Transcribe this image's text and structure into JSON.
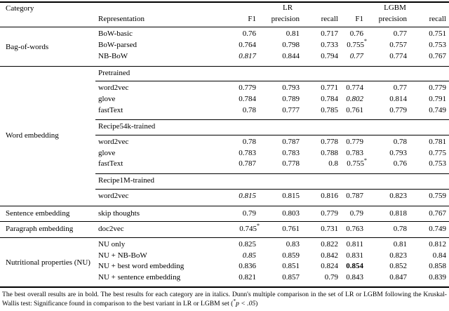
{
  "table": {
    "star_symbol": "*",
    "title_row": {
      "category": "Category",
      "representation": "Representation",
      "lr": "LR",
      "lgbm": "LGBM"
    },
    "metrics": {
      "f1": "F1",
      "precision": "precision",
      "recall": "recall"
    },
    "sections": [
      {
        "category": "Bag-of-words",
        "blocks": [
          {
            "subheader": "",
            "rows": [
              {
                "label": "BoW-basic",
                "values": [
                  {
                    "v": "0.76"
                  },
                  {
                    "v": "0.81"
                  },
                  {
                    "v": "0.717"
                  },
                  {
                    "v": "0.76"
                  },
                  {
                    "v": "0.77"
                  },
                  {
                    "v": "0.751"
                  }
                ]
              },
              {
                "label": "BoW-parsed",
                "values": [
                  {
                    "v": "0.764"
                  },
                  {
                    "v": "0.798"
                  },
                  {
                    "v": "0.733"
                  },
                  {
                    "v": "0.755",
                    "star": true
                  },
                  {
                    "v": "0.757"
                  },
                  {
                    "v": "0.753"
                  }
                ]
              },
              {
                "label": "NB-BoW",
                "values": [
                  {
                    "v": "0.817",
                    "italic": true
                  },
                  {
                    "v": "0.844"
                  },
                  {
                    "v": "0.794"
                  },
                  {
                    "v": "0.77",
                    "italic": true
                  },
                  {
                    "v": "0.774"
                  },
                  {
                    "v": "0.767"
                  }
                ]
              }
            ]
          }
        ]
      },
      {
        "category": "Word embedding",
        "blocks": [
          {
            "subheader": "Pretrained",
            "rows": [
              {
                "label": "word2vec",
                "values": [
                  {
                    "v": "0.779"
                  },
                  {
                    "v": "0.793"
                  },
                  {
                    "v": "0.771"
                  },
                  {
                    "v": "0.774"
                  },
                  {
                    "v": "0.77"
                  },
                  {
                    "v": "0.779"
                  }
                ]
              },
              {
                "label": "glove",
                "values": [
                  {
                    "v": "0.784"
                  },
                  {
                    "v": "0.789"
                  },
                  {
                    "v": "0.784"
                  },
                  {
                    "v": "0.802",
                    "italic": true
                  },
                  {
                    "v": "0.814"
                  },
                  {
                    "v": "0.791"
                  }
                ]
              },
              {
                "label": "fastText",
                "values": [
                  {
                    "v": "0.78"
                  },
                  {
                    "v": "0.777"
                  },
                  {
                    "v": "0.785"
                  },
                  {
                    "v": "0.761"
                  },
                  {
                    "v": "0.779"
                  },
                  {
                    "v": "0.749"
                  }
                ]
              }
            ]
          },
          {
            "subheader": "Recipe54k-trained",
            "rows": [
              {
                "label": "word2vec",
                "values": [
                  {
                    "v": "0.78"
                  },
                  {
                    "v": "0.787"
                  },
                  {
                    "v": "0.778"
                  },
                  {
                    "v": "0.779"
                  },
                  {
                    "v": "0.78"
                  },
                  {
                    "v": "0.781"
                  }
                ]
              },
              {
                "label": "glove",
                "values": [
                  {
                    "v": "0.783"
                  },
                  {
                    "v": "0.783"
                  },
                  {
                    "v": "0.788"
                  },
                  {
                    "v": "0.783"
                  },
                  {
                    "v": "0.793"
                  },
                  {
                    "v": "0.775"
                  }
                ]
              },
              {
                "label": "fastText",
                "values": [
                  {
                    "v": "0.787"
                  },
                  {
                    "v": "0.778"
                  },
                  {
                    "v": "0.8"
                  },
                  {
                    "v": "0.755",
                    "star": true
                  },
                  {
                    "v": "0.76"
                  },
                  {
                    "v": "0.753"
                  }
                ]
              }
            ]
          },
          {
            "subheader": "Recipe1M-trained",
            "rows": [
              {
                "label": "word2vec",
                "values": [
                  {
                    "v": "0.815",
                    "italic": true
                  },
                  {
                    "v": "0.815"
                  },
                  {
                    "v": "0.816"
                  },
                  {
                    "v": "0.787"
                  },
                  {
                    "v": "0.823"
                  },
                  {
                    "v": "0.759"
                  }
                ]
              }
            ]
          }
        ]
      },
      {
        "category": "Sentence embedding",
        "blocks": [
          {
            "subheader": "",
            "rows": [
              {
                "label": "skip thoughts",
                "values": [
                  {
                    "v": "0.79"
                  },
                  {
                    "v": "0.803"
                  },
                  {
                    "v": "0.779"
                  },
                  {
                    "v": "0.79"
                  },
                  {
                    "v": "0.818"
                  },
                  {
                    "v": "0.767"
                  }
                ]
              }
            ]
          }
        ]
      },
      {
        "category": "Paragraph embedding",
        "blocks": [
          {
            "subheader": "",
            "rows": [
              {
                "label": "doc2vec",
                "values": [
                  {
                    "v": "0.745",
                    "star": true
                  },
                  {
                    "v": "0.761"
                  },
                  {
                    "v": "0.731"
                  },
                  {
                    "v": "0.763"
                  },
                  {
                    "v": "0.78"
                  },
                  {
                    "v": "0.749"
                  }
                ]
              }
            ]
          }
        ]
      },
      {
        "category": "Nutritional properties (NU)",
        "blocks": [
          {
            "subheader": "",
            "rows": [
              {
                "label": "NU only",
                "values": [
                  {
                    "v": "0.825"
                  },
                  {
                    "v": "0.83"
                  },
                  {
                    "v": "0.822"
                  },
                  {
                    "v": "0.811"
                  },
                  {
                    "v": "0.81"
                  },
                  {
                    "v": "0.812"
                  }
                ]
              },
              {
                "label": "NU + NB-BoW",
                "values": [
                  {
                    "v": "0.85",
                    "italic": true
                  },
                  {
                    "v": "0.859"
                  },
                  {
                    "v": "0.842"
                  },
                  {
                    "v": "0.831"
                  },
                  {
                    "v": "0.823"
                  },
                  {
                    "v": "0.84"
                  }
                ]
              },
              {
                "label": "NU + best word embedding",
                "values": [
                  {
                    "v": "0.836"
                  },
                  {
                    "v": "0.851"
                  },
                  {
                    "v": "0.824"
                  },
                  {
                    "v": "0.854",
                    "bold": true
                  },
                  {
                    "v": "0.852"
                  },
                  {
                    "v": "0.858"
                  }
                ]
              },
              {
                "label": "NU + sentence embedding",
                "values": [
                  {
                    "v": "0.821"
                  },
                  {
                    "v": "0.857"
                  },
                  {
                    "v": "0.79"
                  },
                  {
                    "v": "0.843"
                  },
                  {
                    "v": "0.847"
                  },
                  {
                    "v": "0.839"
                  }
                ]
              }
            ]
          }
        ]
      }
    ]
  },
  "footnote": {
    "text_main": "The best overall results are in bold. The best results for each category are in italics. Dunn's multiple comparison in the set of LR or LGBM following the Kruskal-Wallis test: Significance found in comparison to the best variant in LR or LGBM set (",
    "star": "*",
    "p_condition": "p < .05",
    "close_paren": ")"
  }
}
